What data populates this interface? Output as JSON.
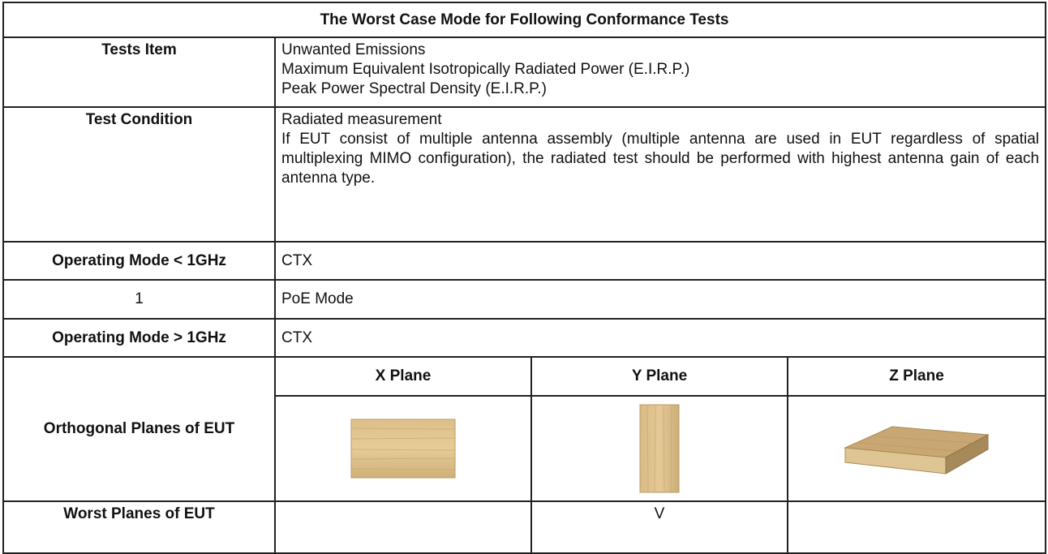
{
  "table": {
    "title": "The Worst Case Mode for Following Conformance Tests",
    "tests_item": {
      "label": "Tests Item",
      "lines": [
        "Unwanted Emissions",
        "Maximum Equivalent Isotropically Radiated Power (E.I.R.P.)",
        "Peak Power Spectral Density (E.I.R.P.)"
      ]
    },
    "test_condition": {
      "label": "Test Condition",
      "lines": [
        "Radiated measurement",
        "If EUT consist of multiple antenna assembly (multiple antenna are used in EUT regardless of spatial multiplexing MIMO configuration), the radiated test should be performed with highest antenna gain of each antenna type."
      ]
    },
    "mode_below": {
      "label": "Operating Mode < 1GHz",
      "value": "CTX"
    },
    "mode_item": {
      "label": "1",
      "value": "PoE Mode"
    },
    "mode_above": {
      "label": "Operating Mode > 1GHz",
      "value": "CTX"
    },
    "planes": {
      "label": "Orthogonal Planes of EUT",
      "headers": [
        "X Plane",
        "Y Plane",
        "Z Plane"
      ]
    },
    "worst": {
      "label": "Worst Planes of EUT",
      "mark": "V"
    }
  }
}
